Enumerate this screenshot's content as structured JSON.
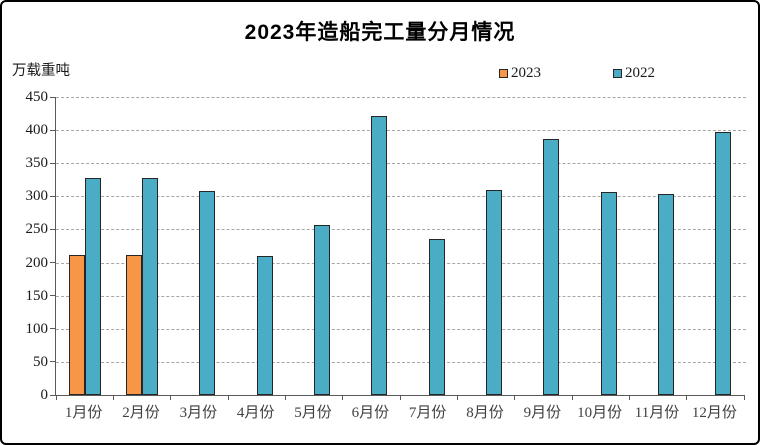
{
  "window": {
    "background_color": "#ffffff",
    "frame_border_color": "#000000"
  },
  "chart_data": {
    "type": "bar",
    "title": "2023年造船完工量分月情况",
    "unit_label": "万载重吨",
    "categories": [
      "1月份",
      "2月份",
      "3月份",
      "4月份",
      "5月份",
      "6月份",
      "7月份",
      "8月份",
      "9月份",
      "10月份",
      "11月份",
      "12月份"
    ],
    "series": [
      {
        "name": "2023",
        "color": "#F79646",
        "values": [
          211,
          211,
          null,
          null,
          null,
          null,
          null,
          null,
          null,
          null,
          null,
          null
        ]
      },
      {
        "name": "2022",
        "color": "#4BACC6",
        "values": [
          327,
          327,
          308,
          210,
          256,
          421,
          235,
          309,
          386,
          307,
          303,
          397
        ]
      }
    ],
    "ylim": [
      0,
      450
    ],
    "ytick_step": 50,
    "grid": true,
    "legend_position": "top-right",
    "styles": {
      "bar_border_color": "#262626",
      "gridline_color": "#a6a6a6",
      "axis_color": "#595959",
      "tick_label_color": "#1a1a1a",
      "category_label_color": "#404040"
    }
  }
}
